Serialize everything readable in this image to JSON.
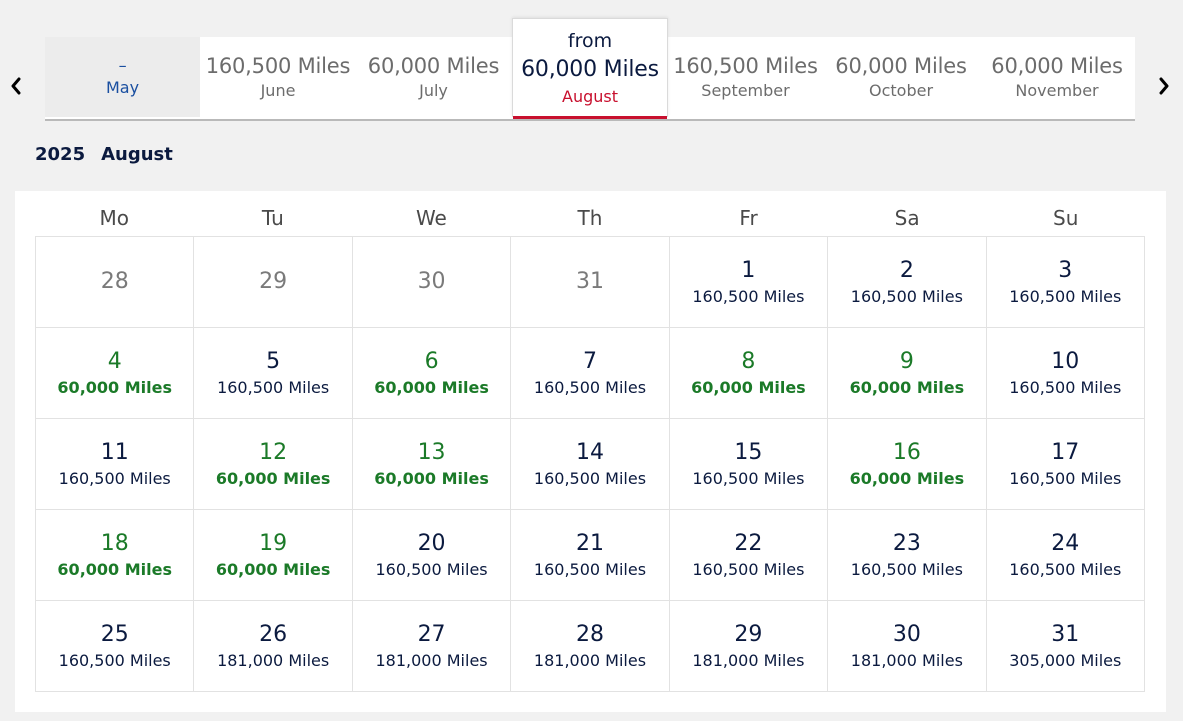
{
  "colors": {
    "navy": "#0b1a3f",
    "accent_red": "#c8102e",
    "low_price_green": "#1b7a28",
    "disabled_blue": "#1a4fa0",
    "muted_gray": "#6c6c6c"
  },
  "nav": {
    "prev_icon": "chevron-left-icon",
    "next_icon": "chevron-right-icon"
  },
  "months": [
    {
      "miles": "–",
      "name": "May",
      "state": "disabled"
    },
    {
      "miles": "160,500 Miles",
      "name": "June",
      "state": "normal"
    },
    {
      "miles": "60,000 Miles",
      "name": "July",
      "state": "normal"
    },
    {
      "from": "from",
      "miles": "60,000 Miles",
      "name": "August",
      "state": "active"
    },
    {
      "miles": "160,500 Miles",
      "name": "September",
      "state": "normal"
    },
    {
      "miles": "60,000 Miles",
      "name": "October",
      "state": "normal"
    },
    {
      "miles": "60,000 Miles",
      "name": "November",
      "state": "normal"
    }
  ],
  "heading": {
    "year": "2025",
    "month": "August"
  },
  "weekdays": [
    "Mo",
    "Tu",
    "We",
    "Th",
    "Fr",
    "Sa",
    "Su"
  ],
  "days": [
    {
      "num": "28",
      "price": "",
      "type": "outside"
    },
    {
      "num": "29",
      "price": "",
      "type": "outside"
    },
    {
      "num": "30",
      "price": "",
      "type": "outside"
    },
    {
      "num": "31",
      "price": "",
      "type": "outside"
    },
    {
      "num": "1",
      "price": "160,500 Miles",
      "type": "normal"
    },
    {
      "num": "2",
      "price": "160,500 Miles",
      "type": "normal"
    },
    {
      "num": "3",
      "price": "160,500 Miles",
      "type": "normal"
    },
    {
      "num": "4",
      "price": "60,000 Miles",
      "type": "low"
    },
    {
      "num": "5",
      "price": "160,500 Miles",
      "type": "normal"
    },
    {
      "num": "6",
      "price": "60,000 Miles",
      "type": "low"
    },
    {
      "num": "7",
      "price": "160,500 Miles",
      "type": "normal"
    },
    {
      "num": "8",
      "price": "60,000 Miles",
      "type": "low"
    },
    {
      "num": "9",
      "price": "60,000 Miles",
      "type": "low"
    },
    {
      "num": "10",
      "price": "160,500 Miles",
      "type": "normal"
    },
    {
      "num": "11",
      "price": "160,500 Miles",
      "type": "normal"
    },
    {
      "num": "12",
      "price": "60,000 Miles",
      "type": "low"
    },
    {
      "num": "13",
      "price": "60,000 Miles",
      "type": "low"
    },
    {
      "num": "14",
      "price": "160,500 Miles",
      "type": "normal"
    },
    {
      "num": "15",
      "price": "160,500 Miles",
      "type": "normal"
    },
    {
      "num": "16",
      "price": "60,000 Miles",
      "type": "low"
    },
    {
      "num": "17",
      "price": "160,500 Miles",
      "type": "normal"
    },
    {
      "num": "18",
      "price": "60,000 Miles",
      "type": "low"
    },
    {
      "num": "19",
      "price": "60,000 Miles",
      "type": "low"
    },
    {
      "num": "20",
      "price": "160,500 Miles",
      "type": "normal"
    },
    {
      "num": "21",
      "price": "160,500 Miles",
      "type": "normal"
    },
    {
      "num": "22",
      "price": "160,500 Miles",
      "type": "normal"
    },
    {
      "num": "23",
      "price": "160,500 Miles",
      "type": "normal"
    },
    {
      "num": "24",
      "price": "160,500 Miles",
      "type": "normal"
    },
    {
      "num": "25",
      "price": "160,500 Miles",
      "type": "normal"
    },
    {
      "num": "26",
      "price": "181,000 Miles",
      "type": "normal"
    },
    {
      "num": "27",
      "price": "181,000 Miles",
      "type": "normal"
    },
    {
      "num": "28",
      "price": "181,000 Miles",
      "type": "normal"
    },
    {
      "num": "29",
      "price": "181,000 Miles",
      "type": "normal"
    },
    {
      "num": "30",
      "price": "181,000 Miles",
      "type": "normal"
    },
    {
      "num": "31",
      "price": "305,000 Miles",
      "type": "normal"
    }
  ]
}
